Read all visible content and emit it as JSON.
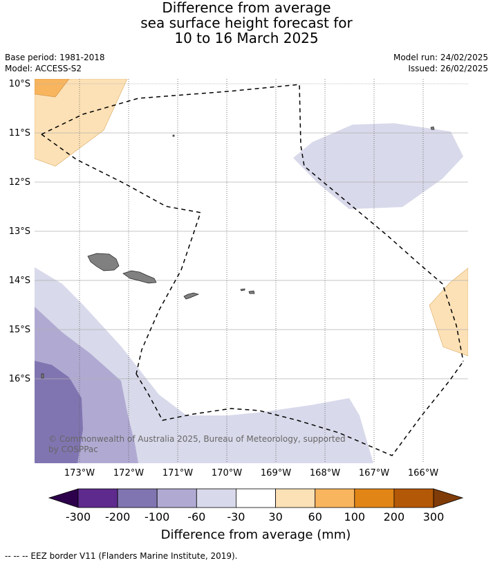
{
  "header": {
    "title_line1": "Difference from average",
    "title_line2": "sea surface height forecast for",
    "title_line3": "10 to 16 March 2025"
  },
  "meta": {
    "base_period": "Base period: 1981-2018",
    "model": "Model: ACCESS-S2",
    "model_run": "Model run: 24/02/2025",
    "issued": "Issued: 26/02/2025"
  },
  "map": {
    "lat_labels": [
      "10°S",
      "11°S",
      "12°S",
      "13°S",
      "14°S",
      "15°S",
      "16°S"
    ],
    "lon_labels": [
      "173°W",
      "172°W",
      "171°W",
      "170°W",
      "169°W",
      "168°W",
      "167°W",
      "166°W"
    ],
    "copyright_line1": "© Commonwealth of Australia 2025, Bureau of Meteorology, supported",
    "copyright_line2": "by COSPPac",
    "colors": {
      "orange_mid": "#f8b55e",
      "orange_light": "#fde1b6",
      "purple_light": "#d8d9ea",
      "purple_mid": "#b0aad3",
      "purple_dark": "#8175b1",
      "land": "#808080"
    }
  },
  "legend": {
    "tick_labels": [
      "-300",
      "-200",
      "-100",
      "-60",
      "-30",
      "30",
      "60",
      "100",
      "200",
      "300"
    ],
    "label": "Difference from average (mm)",
    "colors": [
      "#2d004b",
      "#5e2a8e",
      "#8175b1",
      "#b0aad3",
      "#d8d9ea",
      "#ffffff",
      "#fde1b6",
      "#f8b55e",
      "#e08516",
      "#b35806",
      "#7f3b08"
    ]
  },
  "footer": {
    "eez_note": "--  --  -- EEZ border V11 (Flanders Marine Institute, 2019)."
  }
}
